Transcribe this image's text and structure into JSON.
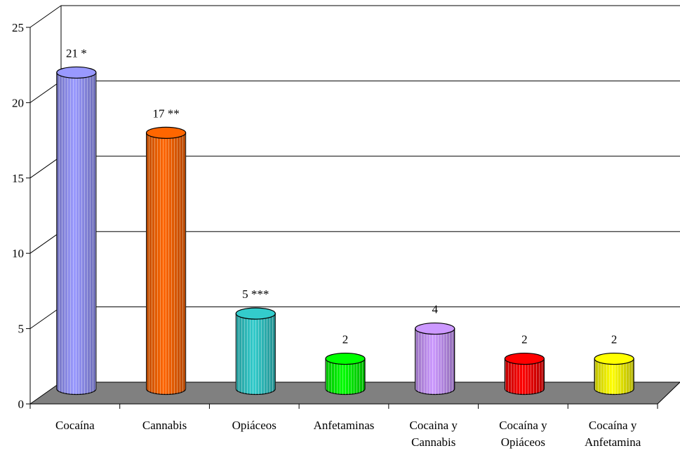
{
  "chart_data": {
    "type": "bar",
    "title": "",
    "xlabel": "",
    "ylabel": "",
    "ylim": [
      0,
      25
    ],
    "yticks": [
      0,
      5,
      10,
      15,
      20,
      25
    ],
    "grid": true,
    "legend": "none",
    "categories": [
      [
        "Cocaína"
      ],
      [
        "Cannabis"
      ],
      [
        "Opiáceos"
      ],
      [
        "Anfetaminas"
      ],
      [
        "Cocaina y",
        "Cannabis"
      ],
      [
        "Cocaína y",
        "Opiáceos"
      ],
      [
        "Cocaína y",
        "Anfetamina"
      ]
    ],
    "values": [
      21,
      17,
      5,
      2,
      4,
      2,
      2
    ],
    "data_labels": [
      "21 *",
      "17 **",
      "5 ***",
      "2",
      "4",
      "2",
      "2"
    ],
    "colors": [
      "#9999ff",
      "#ff6600",
      "#33cccc",
      "#00ff00",
      "#cc99ff",
      "#ff0000",
      "#ffff00"
    ]
  }
}
